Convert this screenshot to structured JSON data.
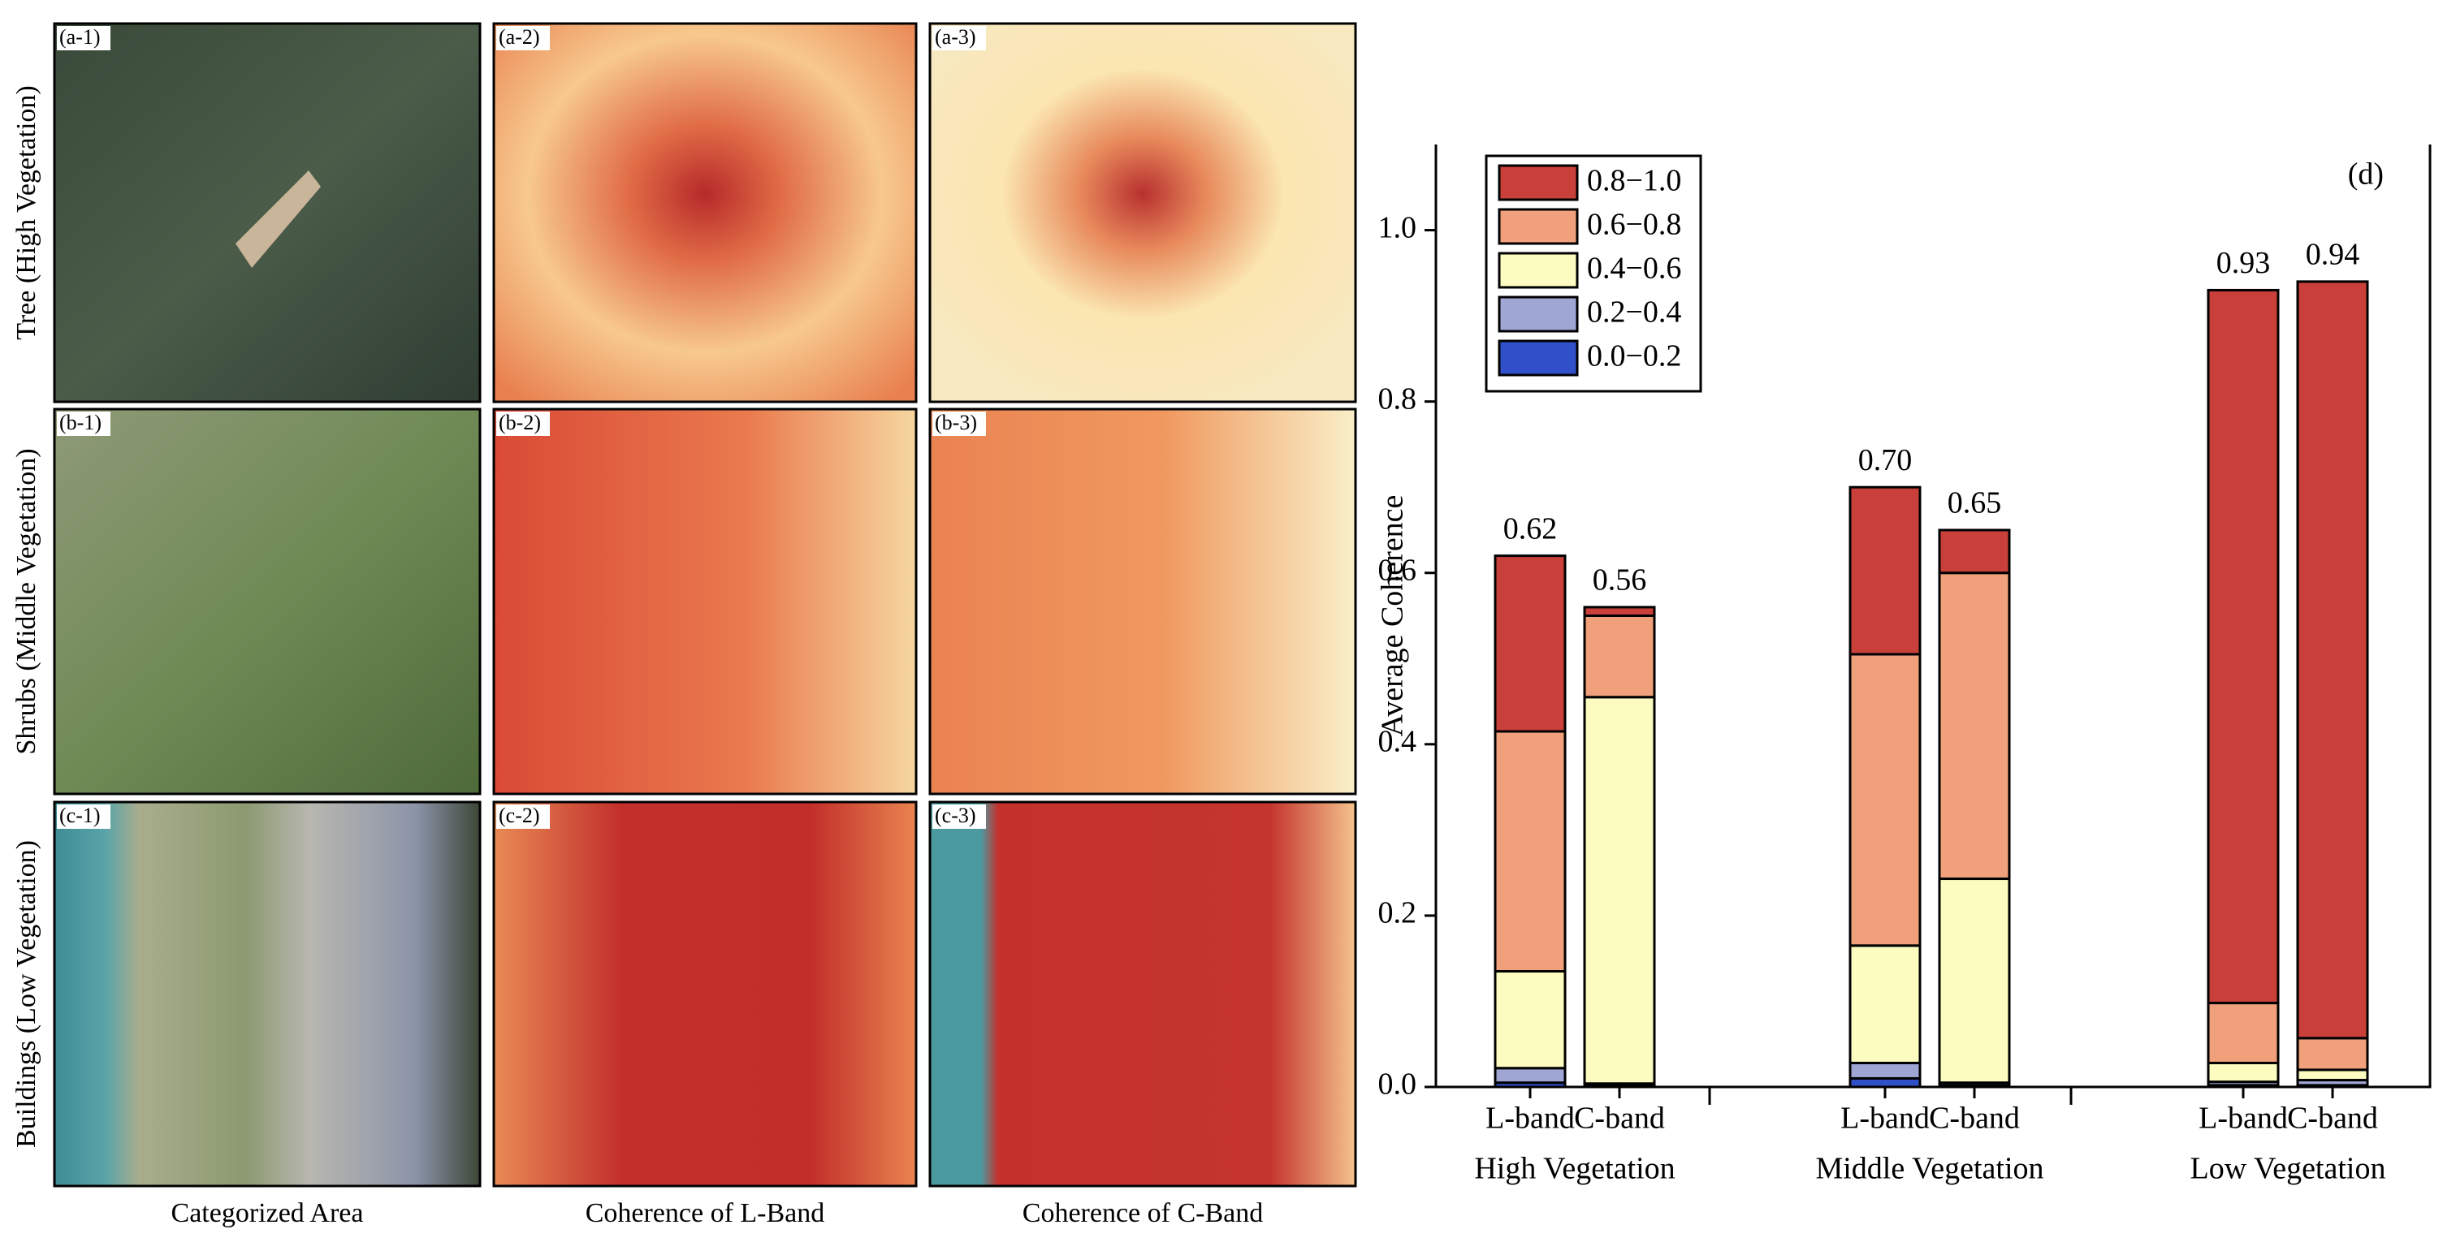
{
  "panels": {
    "tags": [
      [
        "(a-1)",
        "(a-2)",
        "(a-3)"
      ],
      [
        "(b-1)",
        "(b-2)",
        "(b-3)"
      ],
      [
        "(c-1)",
        "(c-2)",
        "(c-3)"
      ]
    ],
    "row_labels": [
      "Tree (High Vegetation)",
      "Shrubs (Middle Vegetation)",
      "Buildings (Low Vegetation)"
    ],
    "column_labels": [
      "Categorized Area",
      "Coherence of L-Band",
      "Coherence of C-Band"
    ]
  },
  "chart_data": {
    "type": "stacked_bar",
    "annotation": "(d)",
    "ylabel": "Average Coherence",
    "categories": [
      "L-band",
      "C-band",
      "L-band",
      "C-band",
      "L-band",
      "C-band"
    ],
    "groups": [
      "High Vegetation",
      "Middle Vegetation",
      "Low Vegetation"
    ],
    "series": [
      {
        "name": "0.0−0.2",
        "color": "#2f50c8",
        "values": [
          0.005,
          0.002,
          0.01,
          0.002,
          0.002,
          0.002
        ]
      },
      {
        "name": "0.2−0.4",
        "color": "#9fa6d4",
        "values": [
          0.017,
          0.002,
          0.018,
          0.003,
          0.004,
          0.006
        ]
      },
      {
        "name": "0.4−0.6",
        "color": "#fdfcc0",
        "values": [
          0.113,
          0.451,
          0.137,
          0.238,
          0.022,
          0.012
        ]
      },
      {
        "name": "0.6−0.8",
        "color": "#f0a07a",
        "values": [
          0.28,
          0.095,
          0.34,
          0.357,
          0.07,
          0.037
        ]
      },
      {
        "name": "0.8−1.0",
        "color": "#c9403a",
        "values": [
          0.205,
          0.01,
          0.195,
          0.05,
          0.832,
          0.883
        ]
      }
    ],
    "totals": [
      0.62,
      0.56,
      0.7,
      0.65,
      0.93,
      0.94
    ],
    "total_labels": [
      "0.62",
      "0.56",
      "0.70",
      "0.65",
      "0.93",
      "0.94"
    ],
    "ylim": [
      0,
      1.1
    ],
    "yticks": [
      {
        "value": 0,
        "label": "0.0"
      },
      0.2,
      0.4,
      0.6,
      0.8,
      {
        "value": 1,
        "label": "1.0"
      }
    ],
    "legend": "upper left"
  }
}
